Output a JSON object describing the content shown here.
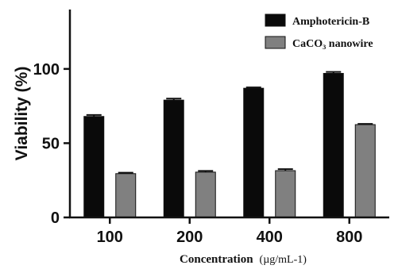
{
  "chart_data": {
    "type": "bar",
    "categories": [
      "100",
      "200",
      "400",
      "800"
    ],
    "series": [
      {
        "name": "Amphotericin-B",
        "values": [
          68,
          79,
          87,
          97
        ],
        "errors": [
          1,
          1,
          0.6,
          1
        ],
        "color": "#0a0a0a"
      },
      {
        "name": "CaCO₃ nanowire",
        "values": [
          29.5,
          30.5,
          31.5,
          62.5
        ],
        "errors": [
          0.6,
          0.8,
          1,
          0.5
        ],
        "color": "#808080"
      }
    ],
    "xlabel": "Concentration",
    "xlabel_unit": "(µg/mL-1)",
    "ylabel": "Viability (%)",
    "ylim": [
      0,
      140
    ],
    "yticks": [
      0,
      50,
      100
    ],
    "grid": false,
    "legend_position": "top-right"
  }
}
